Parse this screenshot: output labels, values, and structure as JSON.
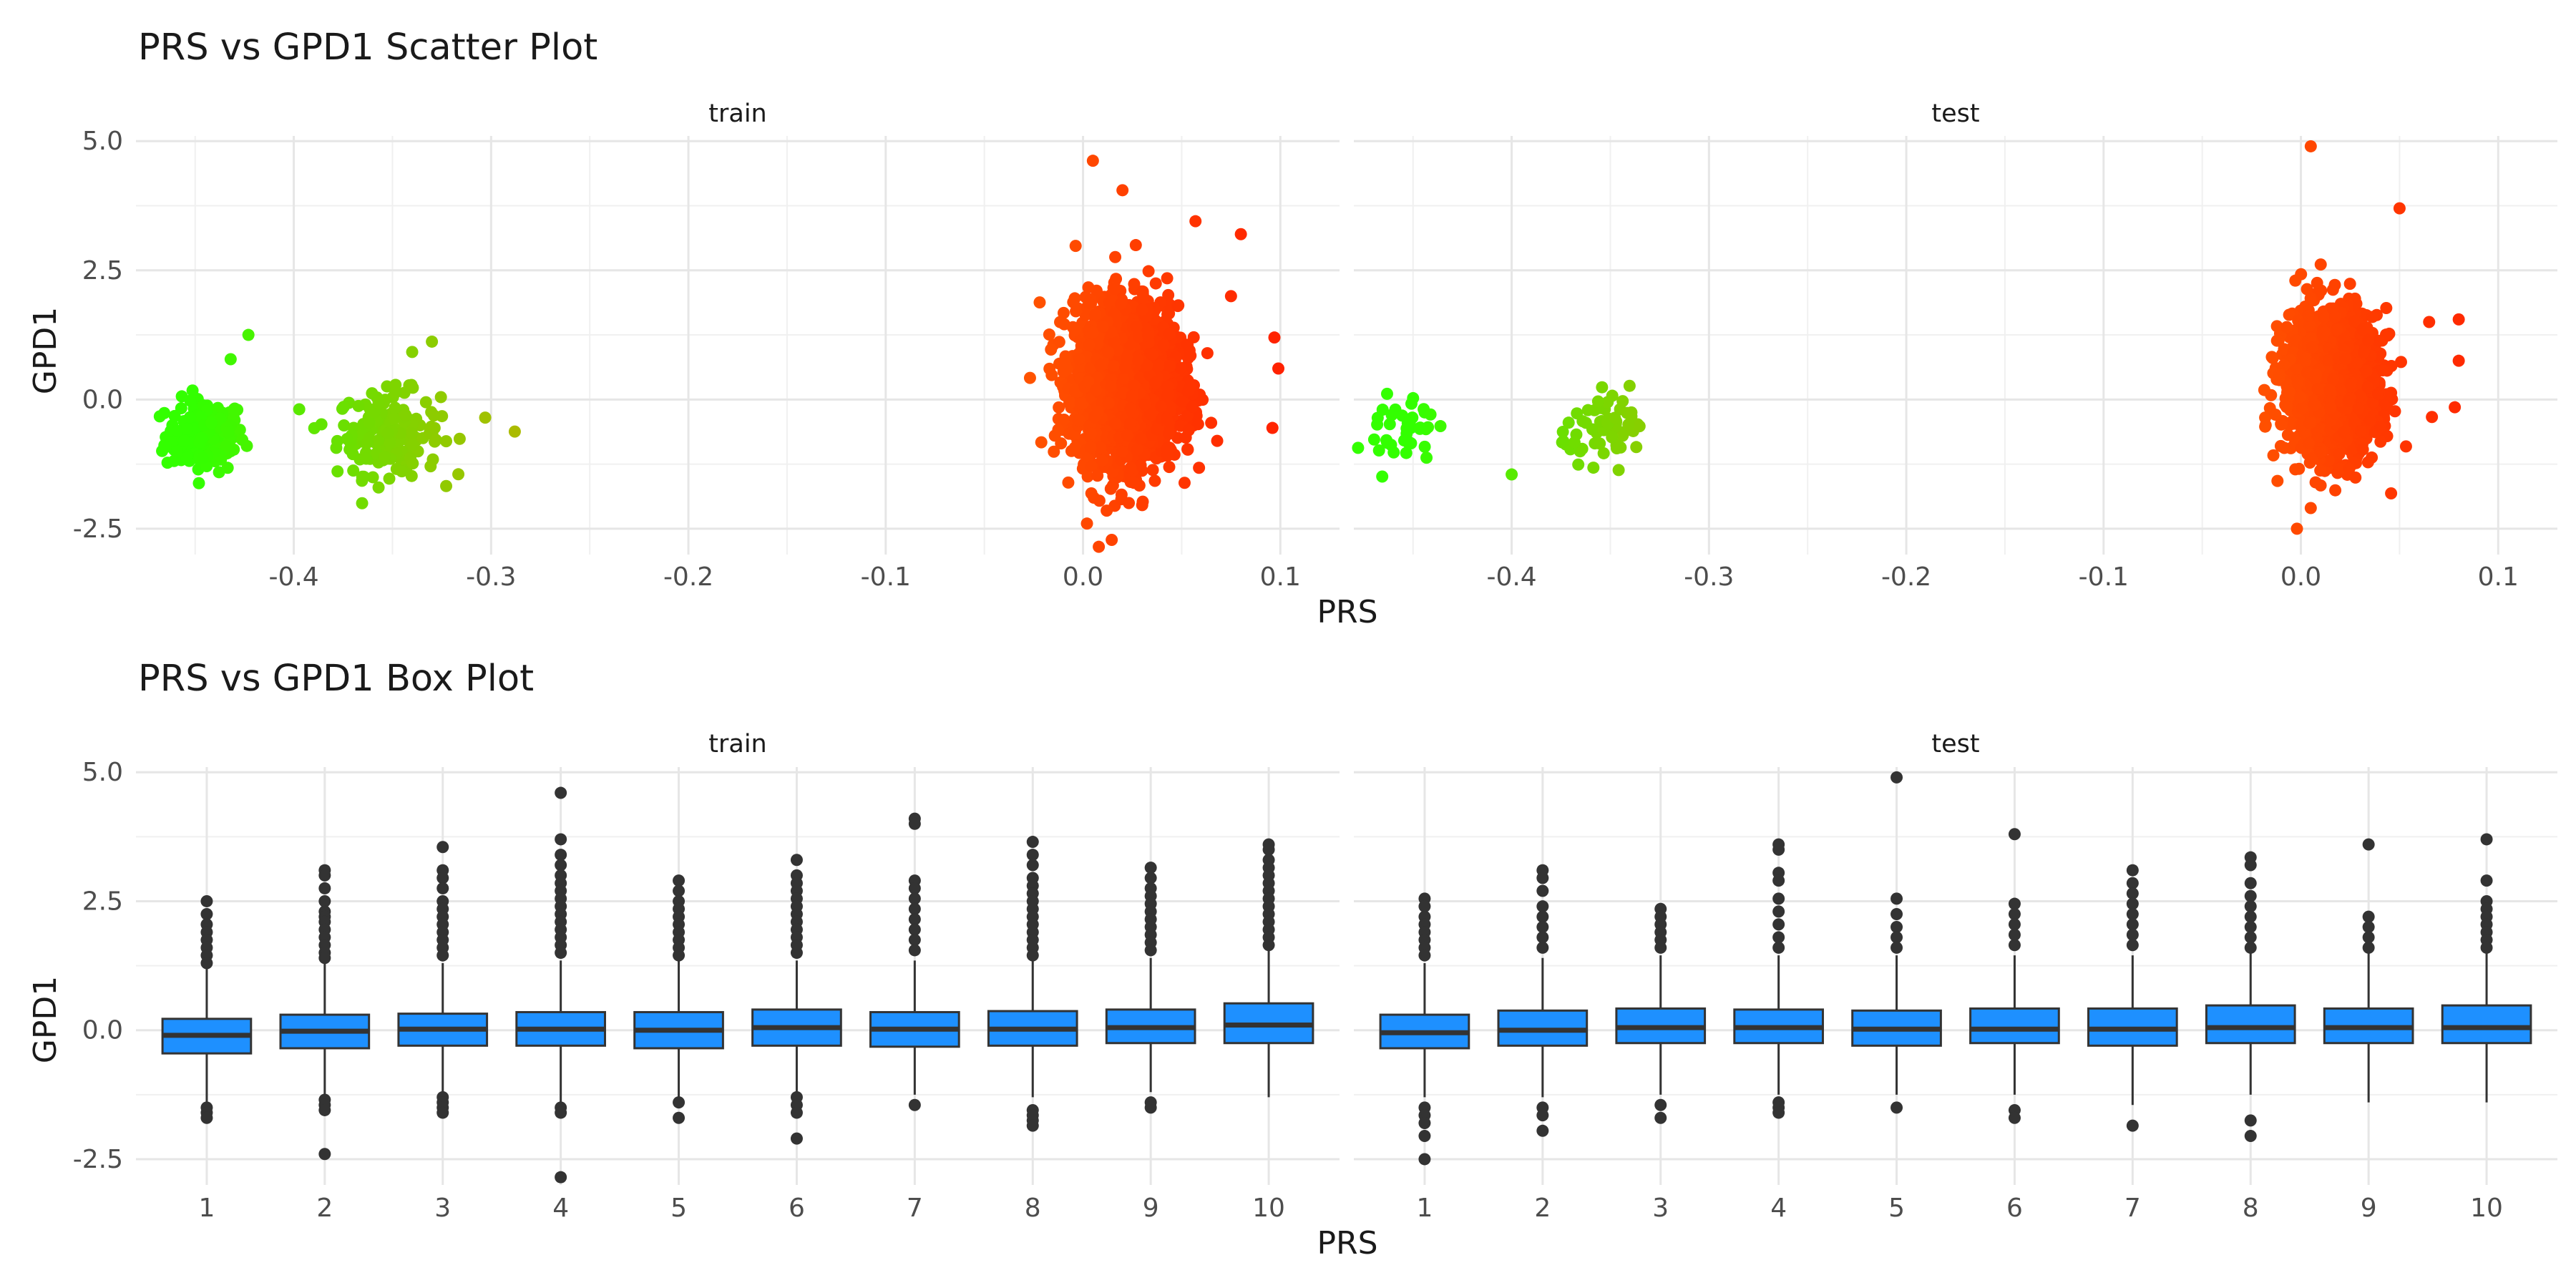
{
  "chart_data": [
    {
      "type": "scatter",
      "title": "PRS vs GPD1 Scatter Plot",
      "xlabel": "PRS",
      "ylabel": "GPD1",
      "facets": [
        "train",
        "test"
      ],
      "xlim": [
        -0.48,
        0.13
      ],
      "ylim": [
        -3.0,
        5.1
      ],
      "x_ticks": [
        "-0.4",
        "-0.3",
        "-0.2",
        "-0.1",
        "0.0",
        "0.1"
      ],
      "x_tick_values": [
        -0.4,
        -0.3,
        -0.2,
        -0.1,
        0.0,
        0.1
      ],
      "y_ticks": [
        "5.0",
        "2.5",
        "0.0",
        "-2.5"
      ],
      "y_tick_values": [
        5.0,
        2.5,
        0.0,
        -2.5
      ],
      "grid": true,
      "color_scale": {
        "low": "#33ff00",
        "high": "#ff2200",
        "low_value": -0.45,
        "high_value": 0.1
      },
      "panels": {
        "train": {
          "clusters": [
            {
              "x_center": -0.445,
              "x_spread": 0.01,
              "y_center": -0.7,
              "y_spread": 0.35,
              "n": 160
            },
            {
              "x_center": -0.352,
              "x_spread": 0.013,
              "y_center": -0.65,
              "y_spread": 0.4,
              "n": 170
            },
            {
              "x_center": 0.022,
              "x_spread": 0.013,
              "y_center": 0.3,
              "y_spread": 0.75,
              "n": 2400
            }
          ],
          "points": [
            {
              "x": -0.423,
              "y": 1.25
            },
            {
              "x": -0.432,
              "y": 0.78
            },
            {
              "x": -0.33,
              "y": 1.12
            },
            {
              "x": -0.34,
              "y": 0.92
            },
            {
              "x": -0.303,
              "y": -0.35
            },
            {
              "x": -0.288,
              "y": -0.62
            },
            {
              "x": -0.386,
              "y": -0.48
            },
            {
              "x": -0.465,
              "y": -0.92
            },
            {
              "x": 0.005,
              "y": 4.62
            },
            {
              "x": 0.02,
              "y": 4.05
            },
            {
              "x": 0.057,
              "y": 3.45
            },
            {
              "x": 0.08,
              "y": 3.2
            },
            {
              "x": 0.097,
              "y": 1.2
            },
            {
              "x": 0.099,
              "y": 0.6
            },
            {
              "x": 0.096,
              "y": -0.55
            },
            {
              "x": 0.002,
              "y": -2.4
            },
            {
              "x": 0.008,
              "y": -2.85
            },
            {
              "x": 0.012,
              "y": -2.15
            },
            {
              "x": 0.075,
              "y": 2.0
            },
            {
              "x": 0.068,
              "y": -0.8
            }
          ]
        },
        "test": {
          "clusters": [
            {
              "x_center": -0.455,
              "x_spread": 0.008,
              "y_center": -0.6,
              "y_spread": 0.38,
              "n": 40
            },
            {
              "x_center": -0.35,
              "x_spread": 0.012,
              "y_center": -0.55,
              "y_spread": 0.3,
              "n": 60
            },
            {
              "x_center": 0.015,
              "x_spread": 0.012,
              "y_center": 0.3,
              "y_spread": 0.7,
              "n": 1400
            }
          ],
          "points": [
            {
              "x": -0.4,
              "y": -1.45
            },
            {
              "x": 0.005,
              "y": 4.9
            },
            {
              "x": 0.05,
              "y": 3.7
            },
            {
              "x": 0.065,
              "y": 1.5
            },
            {
              "x": 0.08,
              "y": 1.55
            },
            {
              "x": 0.08,
              "y": 0.75
            },
            {
              "x": -0.002,
              "y": -2.5
            },
            {
              "x": 0.005,
              "y": -2.1
            },
            {
              "x": 0.078,
              "y": -0.15
            }
          ]
        }
      }
    },
    {
      "type": "box",
      "title": "PRS vs GPD1 Box Plot",
      "xlabel": "PRS",
      "ylabel": "GPD1",
      "facets": [
        "train",
        "test"
      ],
      "categories": [
        "1",
        "2",
        "3",
        "4",
        "5",
        "6",
        "7",
        "8",
        "9",
        "10"
      ],
      "ylim": [
        -3.0,
        5.1
      ],
      "y_ticks": [
        "5.0",
        "2.5",
        "0.0",
        "-2.5"
      ],
      "y_tick_values": [
        5.0,
        2.5,
        0.0,
        -2.5
      ],
      "grid": true,
      "box_color": "#1e90ff",
      "panels": {
        "train": [
          {
            "q1": -0.45,
            "median": -0.1,
            "q3": 0.22,
            "whisker_low": -1.45,
            "whisker_high": 1.2,
            "outliers": [
              2.5,
              2.25,
              2.05,
              1.9,
              1.75,
              1.6,
              1.45,
              1.3,
              -1.5,
              -1.6,
              -1.7
            ]
          },
          {
            "q1": -0.35,
            "median": -0.02,
            "q3": 0.3,
            "whisker_low": -1.3,
            "whisker_high": 1.3,
            "outliers": [
              3.1,
              3.0,
              2.75,
              2.5,
              2.3,
              2.2,
              2.1,
              1.95,
              1.8,
              1.65,
              1.5,
              1.4,
              -1.35,
              -1.45,
              -1.55,
              -2.4
            ]
          },
          {
            "q1": -0.3,
            "median": 0.02,
            "q3": 0.32,
            "whisker_low": -1.2,
            "whisker_high": 1.3,
            "outliers": [
              3.55,
              3.1,
              2.95,
              2.75,
              2.5,
              2.35,
              2.2,
              2.05,
              1.9,
              1.75,
              1.6,
              1.45,
              -1.3,
              -1.4,
              -1.5,
              -1.6
            ]
          },
          {
            "q1": -0.3,
            "median": 0.02,
            "q3": 0.35,
            "whisker_low": -1.4,
            "whisker_high": 1.35,
            "outliers": [
              4.6,
              3.7,
              3.4,
              3.2,
              3.0,
              2.85,
              2.7,
              2.55,
              2.4,
              2.25,
              2.1,
              1.95,
              1.8,
              1.65,
              1.5,
              -1.5,
              -1.6,
              -2.85
            ]
          },
          {
            "q1": -0.35,
            "median": 0.0,
            "q3": 0.35,
            "whisker_low": -1.35,
            "whisker_high": 1.35,
            "outliers": [
              2.9,
              2.7,
              2.5,
              2.35,
              2.2,
              2.05,
              1.9,
              1.75,
              1.6,
              1.45,
              -1.4,
              -1.7
            ]
          },
          {
            "q1": -0.3,
            "median": 0.05,
            "q3": 0.4,
            "whisker_low": -1.2,
            "whisker_high": 1.35,
            "outliers": [
              3.3,
              3.0,
              2.85,
              2.7,
              2.55,
              2.4,
              2.25,
              2.1,
              1.95,
              1.8,
              1.65,
              1.5,
              -1.3,
              -1.45,
              -1.6,
              -2.1
            ]
          },
          {
            "q1": -0.32,
            "median": 0.02,
            "q3": 0.35,
            "whisker_low": -1.25,
            "whisker_high": 1.35,
            "outliers": [
              4.1,
              4.0,
              2.9,
              2.75,
              2.55,
              2.35,
              2.15,
              1.95,
              1.75,
              1.55,
              -1.45
            ]
          },
          {
            "q1": -0.3,
            "median": 0.02,
            "q3": 0.37,
            "whisker_low": -1.3,
            "whisker_high": 1.4,
            "outliers": [
              3.65,
              3.4,
              3.2,
              2.95,
              2.8,
              2.65,
              2.5,
              2.35,
              2.2,
              2.05,
              1.9,
              1.75,
              1.6,
              1.45,
              -1.55,
              -1.65,
              -1.75,
              -1.85
            ]
          },
          {
            "q1": -0.25,
            "median": 0.05,
            "q3": 0.4,
            "whisker_low": -1.2,
            "whisker_high": 1.4,
            "outliers": [
              3.15,
              2.95,
              2.75,
              2.6,
              2.45,
              2.3,
              2.15,
              2.0,
              1.85,
              1.7,
              1.55,
              -1.4,
              -1.5
            ]
          },
          {
            "q1": -0.25,
            "median": 0.1,
            "q3": 0.52,
            "whisker_low": -1.3,
            "whisker_high": 1.55,
            "outliers": [
              3.6,
              3.5,
              3.3,
              3.15,
              3.0,
              2.85,
              2.7,
              2.55,
              2.4,
              2.25,
              2.1,
              1.95,
              1.8,
              1.65
            ]
          }
        ],
        "test": [
          {
            "q1": -0.35,
            "median": -0.05,
            "q3": 0.3,
            "whisker_low": -1.3,
            "whisker_high": 1.3,
            "outliers": [
              2.55,
              2.4,
              2.2,
              2.05,
              1.9,
              1.75,
              1.6,
              1.45,
              -1.5,
              -1.65,
              -1.8,
              -2.05,
              -2.5
            ]
          },
          {
            "q1": -0.3,
            "median": 0.0,
            "q3": 0.38,
            "whisker_low": -1.3,
            "whisker_high": 1.4,
            "outliers": [
              3.1,
              2.95,
              2.7,
              2.4,
              2.2,
              2.0,
              1.8,
              1.6,
              -1.5,
              -1.65,
              -1.95
            ]
          },
          {
            "q1": -0.25,
            "median": 0.05,
            "q3": 0.42,
            "whisker_low": -1.25,
            "whisker_high": 1.45,
            "outliers": [
              2.35,
              2.2,
              2.05,
              1.9,
              1.75,
              1.6,
              -1.45,
              -1.7
            ]
          },
          {
            "q1": -0.25,
            "median": 0.05,
            "q3": 0.4,
            "whisker_low": -1.25,
            "whisker_high": 1.45,
            "outliers": [
              3.6,
              3.5,
              3.05,
              2.9,
              2.55,
              2.3,
              2.05,
              1.8,
              1.6,
              -1.4,
              -1.5,
              -1.6
            ]
          },
          {
            "q1": -0.3,
            "median": 0.02,
            "q3": 0.38,
            "whisker_low": -1.25,
            "whisker_high": 1.45,
            "outliers": [
              4.9,
              2.55,
              2.25,
              2.0,
              1.8,
              1.6,
              -1.5
            ]
          },
          {
            "q1": -0.25,
            "median": 0.02,
            "q3": 0.42,
            "whisker_low": -1.25,
            "whisker_high": 1.45,
            "outliers": [
              3.8,
              2.45,
              2.25,
              2.05,
              1.85,
              1.65,
              -1.55,
              -1.7
            ]
          },
          {
            "q1": -0.3,
            "median": 0.02,
            "q3": 0.42,
            "whisker_low": -1.45,
            "whisker_high": 1.45,
            "outliers": [
              3.1,
              2.85,
              2.65,
              2.45,
              2.25,
              2.05,
              1.85,
              1.65,
              -1.85
            ]
          },
          {
            "q1": -0.25,
            "median": 0.05,
            "q3": 0.48,
            "whisker_low": -1.25,
            "whisker_high": 1.5,
            "outliers": [
              3.35,
              3.2,
              2.85,
              2.6,
              2.4,
              2.2,
              2.0,
              1.8,
              1.6,
              -1.75,
              -2.05
            ]
          },
          {
            "q1": -0.25,
            "median": 0.05,
            "q3": 0.42,
            "whisker_low": -1.4,
            "whisker_high": 1.5,
            "outliers": [
              3.6,
              2.2,
              2.0,
              1.8,
              1.6
            ]
          },
          {
            "q1": -0.25,
            "median": 0.05,
            "q3": 0.48,
            "whisker_low": -1.4,
            "whisker_high": 1.55,
            "outliers": [
              3.7,
              2.9,
              2.5,
              2.35,
              2.2,
              2.05,
              1.9,
              1.75,
              1.6
            ]
          }
        ]
      }
    }
  ]
}
